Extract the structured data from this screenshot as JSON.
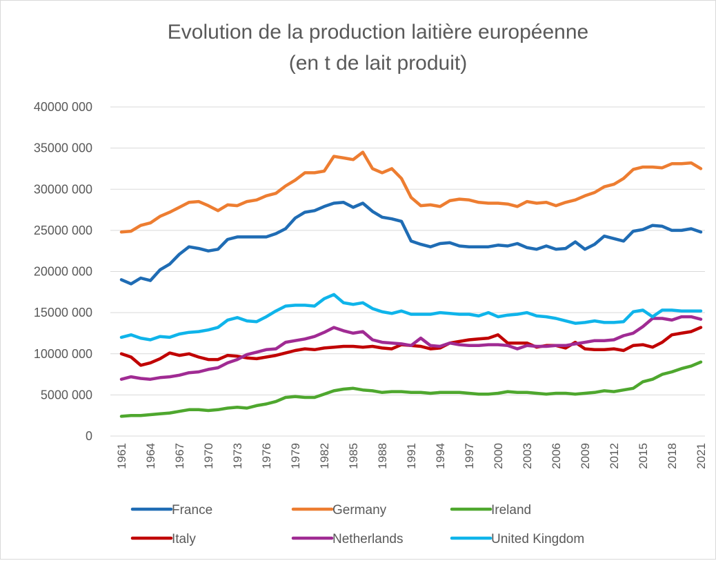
{
  "chart_data": {
    "type": "line",
    "title": "Evolution de la production laitière européenne",
    "subtitle": "(en t de lait produit)",
    "x": [
      1961,
      1962,
      1963,
      1964,
      1965,
      1966,
      1967,
      1968,
      1969,
      1970,
      1971,
      1972,
      1973,
      1974,
      1975,
      1976,
      1977,
      1978,
      1979,
      1980,
      1981,
      1982,
      1983,
      1984,
      1985,
      1986,
      1987,
      1988,
      1989,
      1990,
      1991,
      1992,
      1993,
      1994,
      1995,
      1996,
      1997,
      1998,
      1999,
      2000,
      2001,
      2002,
      2003,
      2004,
      2005,
      2006,
      2007,
      2008,
      2009,
      2010,
      2011,
      2012,
      2013,
      2014,
      2015,
      2016,
      2017,
      2018,
      2019,
      2020,
      2021
    ],
    "xlim": [
      1961,
      2021
    ],
    "xticks": [
      1961,
      1964,
      1967,
      1970,
      1973,
      1976,
      1979,
      1982,
      1985,
      1988,
      1991,
      1994,
      1997,
      2000,
      2003,
      2006,
      2009,
      2012,
      2015,
      2018,
      2021
    ],
    "ylim": [
      0,
      40000000
    ],
    "yticks": [
      0,
      {
        "value": 5000000,
        "label": "5000 000"
      },
      {
        "value": 10000000,
        "label": "10000 000"
      },
      {
        "value": 15000000,
        "label": "15000 000"
      },
      {
        "value": 20000000,
        "label": "20000 000"
      },
      {
        "value": 25000000,
        "label": "25000 000"
      },
      {
        "value": 30000000,
        "label": "30000 000"
      },
      {
        "value": 35000000,
        "label": "35000 000"
      },
      {
        "value": 40000000,
        "label": "40000 000"
      }
    ],
    "grid": true,
    "legend": "bottom",
    "series": [
      {
        "name": "France",
        "color": "#1f6cb4",
        "values": [
          19000000.0,
          18500000.0,
          19200000.0,
          18900000.0,
          20200000.0,
          20900000.0,
          22100000.0,
          23000000.0,
          22800000.0,
          22500000.0,
          22700000.0,
          23900000.0,
          24200000.0,
          24200000.0,
          24200000.0,
          24200000.0,
          24600000.0,
          25200000.0,
          26500000.0,
          27200000.0,
          27400000.0,
          27900000.0,
          28300000.0,
          28400000.0,
          27800000.0,
          28300000.0,
          27300000.0,
          26600000.0,
          26400000.0,
          26100000.0,
          23700000.0,
          23300000.0,
          23000000.0,
          23400000.0,
          23500000.0,
          23100000.0,
          23000000.0,
          23000000.0,
          23000000.0,
          23200000.0,
          23100000.0,
          23400000.0,
          22900000.0,
          22700000.0,
          23100000.0,
          22700000.0,
          22800000.0,
          23600000.0,
          22700000.0,
          23300000.0,
          24300000.0,
          24000000.0,
          23700000.0,
          24900000.0,
          25100000.0,
          25600000.0,
          25500000.0,
          25000000.0,
          25000000.0,
          25200000.0,
          24800000.0
        ]
      },
      {
        "name": "Germany",
        "color": "#ed7d31",
        "values": [
          24800000.0,
          24900000.0,
          25600000.0,
          25900000.0,
          26700000.0,
          27200000.0,
          27800000.0,
          28400000.0,
          28500000.0,
          28000000.0,
          27400000.0,
          28100000.0,
          28000000.0,
          28500000.0,
          28700000.0,
          29200000.0,
          29500000.0,
          30400000.0,
          31100000.0,
          32000000.0,
          32000000.0,
          32200000.0,
          34000000.0,
          33800000.0,
          33600000.0,
          34500000.0,
          32500000.0,
          32000000.0,
          32500000.0,
          31300000.0,
          29000000.0,
          28000000.0,
          28100000.0,
          27900000.0,
          28600000.0,
          28800000.0,
          28700000.0,
          28400000.0,
          28300000.0,
          28300000.0,
          28200000.0,
          27900000.0,
          28500000.0,
          28300000.0,
          28400000.0,
          28000000.0,
          28400000.0,
          28700000.0,
          29200000.0,
          29600000.0,
          30300000.0,
          30600000.0,
          31300000.0,
          32400000.0,
          32700000.0,
          32700000.0,
          32600000.0,
          33100000.0,
          33100000.0,
          33200000.0,
          32500000.0
        ]
      },
      {
        "name": "Ireland",
        "color": "#4ea72e",
        "values": [
          2400000.0,
          2500000.0,
          2500000.0,
          2600000.0,
          2700000.0,
          2800000.0,
          3000000.0,
          3200000.0,
          3200000.0,
          3100000.0,
          3200000.0,
          3400000.0,
          3500000.0,
          3400000.0,
          3700000.0,
          3900000.0,
          4200000.0,
          4700000.0,
          4800000.0,
          4700000.0,
          4700000.0,
          5100000.0,
          5500000.0,
          5700000.0,
          5800000.0,
          5600000.0,
          5500000.0,
          5300000.0,
          5400000.0,
          5400000.0,
          5300000.0,
          5300000.0,
          5200000.0,
          5300000.0,
          5300000.0,
          5300000.0,
          5200000.0,
          5100000.0,
          5100000.0,
          5200000.0,
          5400000.0,
          5300000.0,
          5300000.0,
          5200000.0,
          5100000.0,
          5200000.0,
          5200000.0,
          5100000.0,
          5200000.0,
          5300000.0,
          5500000.0,
          5400000.0,
          5600000.0,
          5800000.0,
          6600000.0,
          6900000.0,
          7500000.0,
          7800000.0,
          8200000.0,
          8500000.0,
          9000000.0
        ]
      },
      {
        "name": "Italy",
        "color": "#c00000",
        "values": [
          10000000.0,
          9600000.0,
          8600000.0,
          8900000.0,
          9400000.0,
          10100000.0,
          9800000.0,
          10000000.0,
          9600000.0,
          9300000.0,
          9300000.0,
          9800000.0,
          9700000.0,
          9500000.0,
          9400000.0,
          9600000.0,
          9800000.0,
          10100000.0,
          10400000.0,
          10600000.0,
          10500000.0,
          10700000.0,
          10800000.0,
          10900000.0,
          10900000.0,
          10800000.0,
          10900000.0,
          10700000.0,
          10600000.0,
          11100000.0,
          11000000.0,
          10900000.0,
          10600000.0,
          10700000.0,
          11300000.0,
          11500000.0,
          11700000.0,
          11800000.0,
          11900000.0,
          12300000.0,
          11300000.0,
          11300000.0,
          11300000.0,
          10800000.0,
          11000000.0,
          11000000.0,
          10700000.0,
          11400000.0,
          10600000.0,
          10500000.0,
          10500000.0,
          10600000.0,
          10400000.0,
          11000000.0,
          11100000.0,
          10800000.0,
          11400000.0,
          12300000.0,
          12500000.0,
          12700000.0,
          13200000.0
        ]
      },
      {
        "name": "Netherlands",
        "color": "#a02b93",
        "values": [
          6900000.0,
          7200000.0,
          7000000.0,
          6900000.0,
          7100000.0,
          7200000.0,
          7400000.0,
          7700000.0,
          7800000.0,
          8100000.0,
          8300000.0,
          8900000.0,
          9300000.0,
          9900000.0,
          10200000.0,
          10500000.0,
          10600000.0,
          11400000.0,
          11600000.0,
          11800000.0,
          12100000.0,
          12600000.0,
          13200000.0,
          12800000.0,
          12500000.0,
          12700000.0,
          11700000.0,
          11400000.0,
          11300000.0,
          11200000.0,
          11000000.0,
          11900000.0,
          11000000.0,
          10900000.0,
          11300000.0,
          11100000.0,
          11000000.0,
          11000000.0,
          11100000.0,
          11100000.0,
          11000000.0,
          10600000.0,
          11000000.0,
          10900000.0,
          10900000.0,
          11000000.0,
          11000000.0,
          11200000.0,
          11400000.0,
          11600000.0,
          11600000.0,
          11700000.0,
          12200000.0,
          12500000.0,
          13300000.0,
          14300000.0,
          14300000.0,
          14100000.0,
          14500000.0,
          14500000.0,
          14200000.0
        ]
      },
      {
        "name": "United Kingdom",
        "color": "#0fb4ea",
        "values": [
          12000000.0,
          12300000.0,
          11900000.0,
          11700000.0,
          12100000.0,
          12000000.0,
          12400000.0,
          12600000.0,
          12700000.0,
          12900000.0,
          13200000.0,
          14100000.0,
          14400000.0,
          14000000.0,
          13900000.0,
          14500000.0,
          15200000.0,
          15800000.0,
          15900000.0,
          15900000.0,
          15800000.0,
          16700000.0,
          17200000.0,
          16200000.0,
          16000000.0,
          16200000.0,
          15500000.0,
          15100000.0,
          14900000.0,
          15200000.0,
          14800000.0,
          14800000.0,
          14800000.0,
          15000000.0,
          14900000.0,
          14800000.0,
          14800000.0,
          14600000.0,
          15000000.0,
          14500000.0,
          14700000.0,
          14800000.0,
          15000000.0,
          14600000.0,
          14500000.0,
          14300000.0,
          14000000.0,
          13700000.0,
          13800000.0,
          14000000.0,
          13800000.0,
          13800000.0,
          13900000.0,
          15100000.0,
          15300000.0,
          14500000.0,
          15300000.0,
          15300000.0,
          15200000.0,
          15200000.0,
          15200000.0
        ]
      }
    ]
  }
}
